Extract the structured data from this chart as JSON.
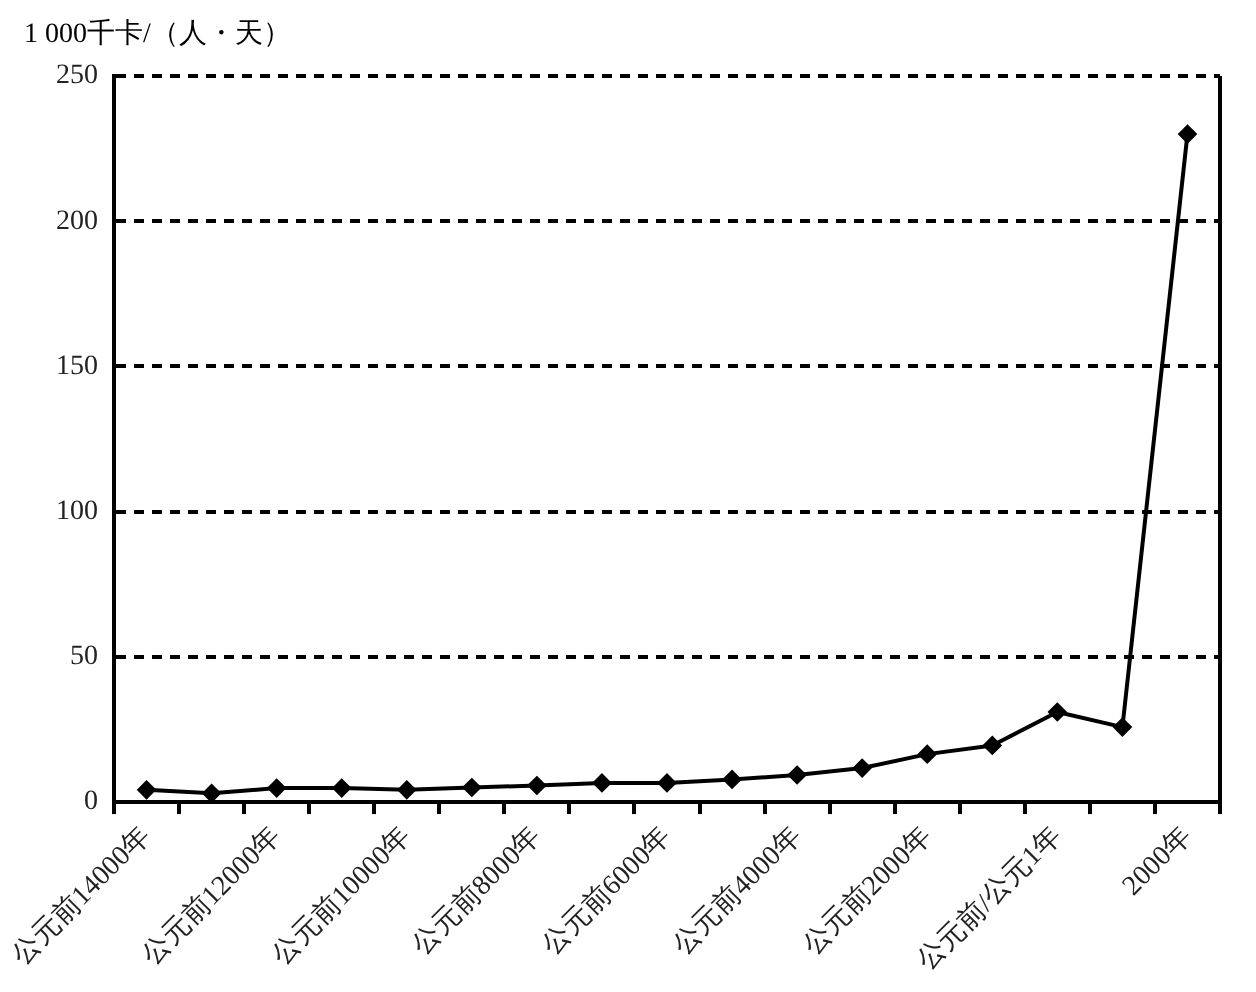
{
  "chart_data": {
    "type": "line",
    "ylabel": "1 000千卡/（人・天）",
    "categories": [
      "公元前14000年",
      null,
      "公元前12000年",
      null,
      "公元前10000年",
      null,
      "公元前8000年",
      null,
      "公元前6000年",
      null,
      "公元前4000年",
      null,
      "公元前2000年",
      null,
      "公元前/公元1年",
      null,
      "2000年"
    ],
    "series": [
      {
        "color": "#000000",
        "values": [
          4.2,
          3,
          4.8,
          4.8,
          4.2,
          5,
          5.7,
          6.6,
          6.6,
          7.8,
          9.3,
          11.7,
          16.5,
          19.5,
          31,
          25.8,
          230
        ]
      }
    ],
    "ylim": [
      0,
      250
    ],
    "yticks": [
      0,
      50,
      100,
      150,
      200,
      250
    ],
    "grid": "y",
    "legend": false,
    "marker": "diamond",
    "line_style": "solid"
  }
}
